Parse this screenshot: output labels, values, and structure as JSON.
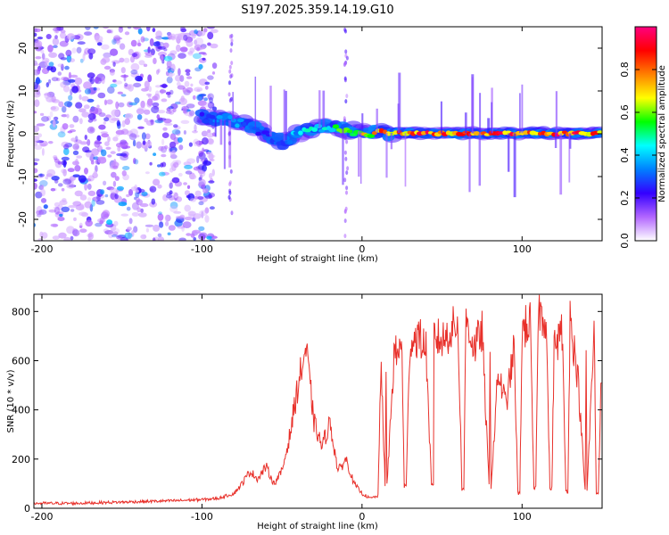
{
  "chart_data": [
    {
      "type": "heatmap",
      "title": "S197.2025.359.14.19.G10",
      "xlabel": "Height of straight line (km)",
      "ylabel": "Frequency (Hz)",
      "xlim": [
        -205,
        150
      ],
      "ylim": [
        -25,
        25
      ],
      "xticks": [
        -200,
        -100,
        0,
        100
      ],
      "yticks": [
        20,
        10,
        0,
        -10,
        -20
      ],
      "colorbar": {
        "label": "Normalized spectral amplitude",
        "range": [
          0,
          1
        ],
        "ticks": [
          "0.0",
          "0.2",
          "0.4",
          "0.6",
          "0.8"
        ],
        "stops": [
          "#ffffff",
          "#b266ff",
          "#3300ff",
          "#0080ff",
          "#00ffff",
          "#00ff00",
          "#ffff00",
          "#ff8000",
          "#ff0000",
          "#ff0080"
        ]
      },
      "ridge": {
        "x": [
          -100,
          -90,
          -80,
          -70,
          -60,
          -55,
          -50,
          -45,
          -40,
          -30,
          -20,
          -10,
          0,
          10,
          20,
          40,
          60,
          80,
          100,
          120,
          150
        ],
        "frequency": [
          4,
          3.5,
          3,
          2,
          0,
          -1,
          -2,
          -1,
          0,
          1,
          2,
          1,
          0.5,
          0.3,
          0.2,
          0.1,
          0.1,
          0.1,
          0.1,
          0.1,
          0.1
        ],
        "amplitude": [
          0.3,
          0.35,
          0.4,
          0.35,
          0.3,
          0.3,
          0.35,
          0.4,
          0.45,
          0.5,
          0.55,
          0.6,
          0.7,
          0.85,
          0.9,
          0.95,
          0.9,
          0.95,
          0.9,
          0.95,
          0.9
        ]
      }
    },
    {
      "type": "line",
      "title": "",
      "xlabel": "Height of straight line (km)",
      "ylabel": "SNR (10 * v/v)",
      "xlim": [
        -205,
        150
      ],
      "ylim": [
        0,
        870
      ],
      "xticks": [
        -200,
        -100,
        0,
        100
      ],
      "yticks": [
        0,
        200,
        400,
        600,
        800
      ],
      "color": "#e8302a",
      "series": [
        {
          "name": "SNR",
          "x": [
            -205,
            -180,
            -150,
            -120,
            -100,
            -90,
            -80,
            -75,
            -70,
            -65,
            -60,
            -55,
            -50,
            -45,
            -40,
            -35,
            -30,
            -25,
            -20,
            -15,
            -10,
            -5,
            0,
            5,
            10,
            12,
            15,
            20,
            25,
            30,
            35,
            40,
            45,
            50,
            55,
            60,
            65,
            70,
            75,
            80,
            85,
            90,
            95,
            100,
            105,
            110,
            115,
            120,
            125,
            130,
            135,
            140,
            145,
            150
          ],
          "y": [
            20,
            20,
            25,
            30,
            35,
            40,
            60,
            100,
            150,
            120,
            170,
            100,
            150,
            300,
            500,
            650,
            350,
            250,
            350,
            150,
            200,
            100,
            60,
            40,
            50,
            600,
            550,
            620,
            650,
            680,
            700,
            650,
            700,
            680,
            720,
            750,
            780,
            650,
            720,
            600,
            550,
            420,
            650,
            720,
            760,
            800,
            780,
            650,
            720,
            780,
            520,
            650,
            720,
            680
          ]
        }
      ],
      "dropouts": [
        {
          "x": 15,
          "y": 90
        },
        {
          "x": 27,
          "y": 90
        },
        {
          "x": 44,
          "y": 90
        },
        {
          "x": 63,
          "y": 80
        },
        {
          "x": 80,
          "y": 90
        },
        {
          "x": 98,
          "y": 60
        },
        {
          "x": 108,
          "y": 80
        },
        {
          "x": 118,
          "y": 80
        },
        {
          "x": 128,
          "y": 70
        },
        {
          "x": 140,
          "y": 70
        },
        {
          "x": 147,
          "y": 60
        }
      ]
    }
  ]
}
